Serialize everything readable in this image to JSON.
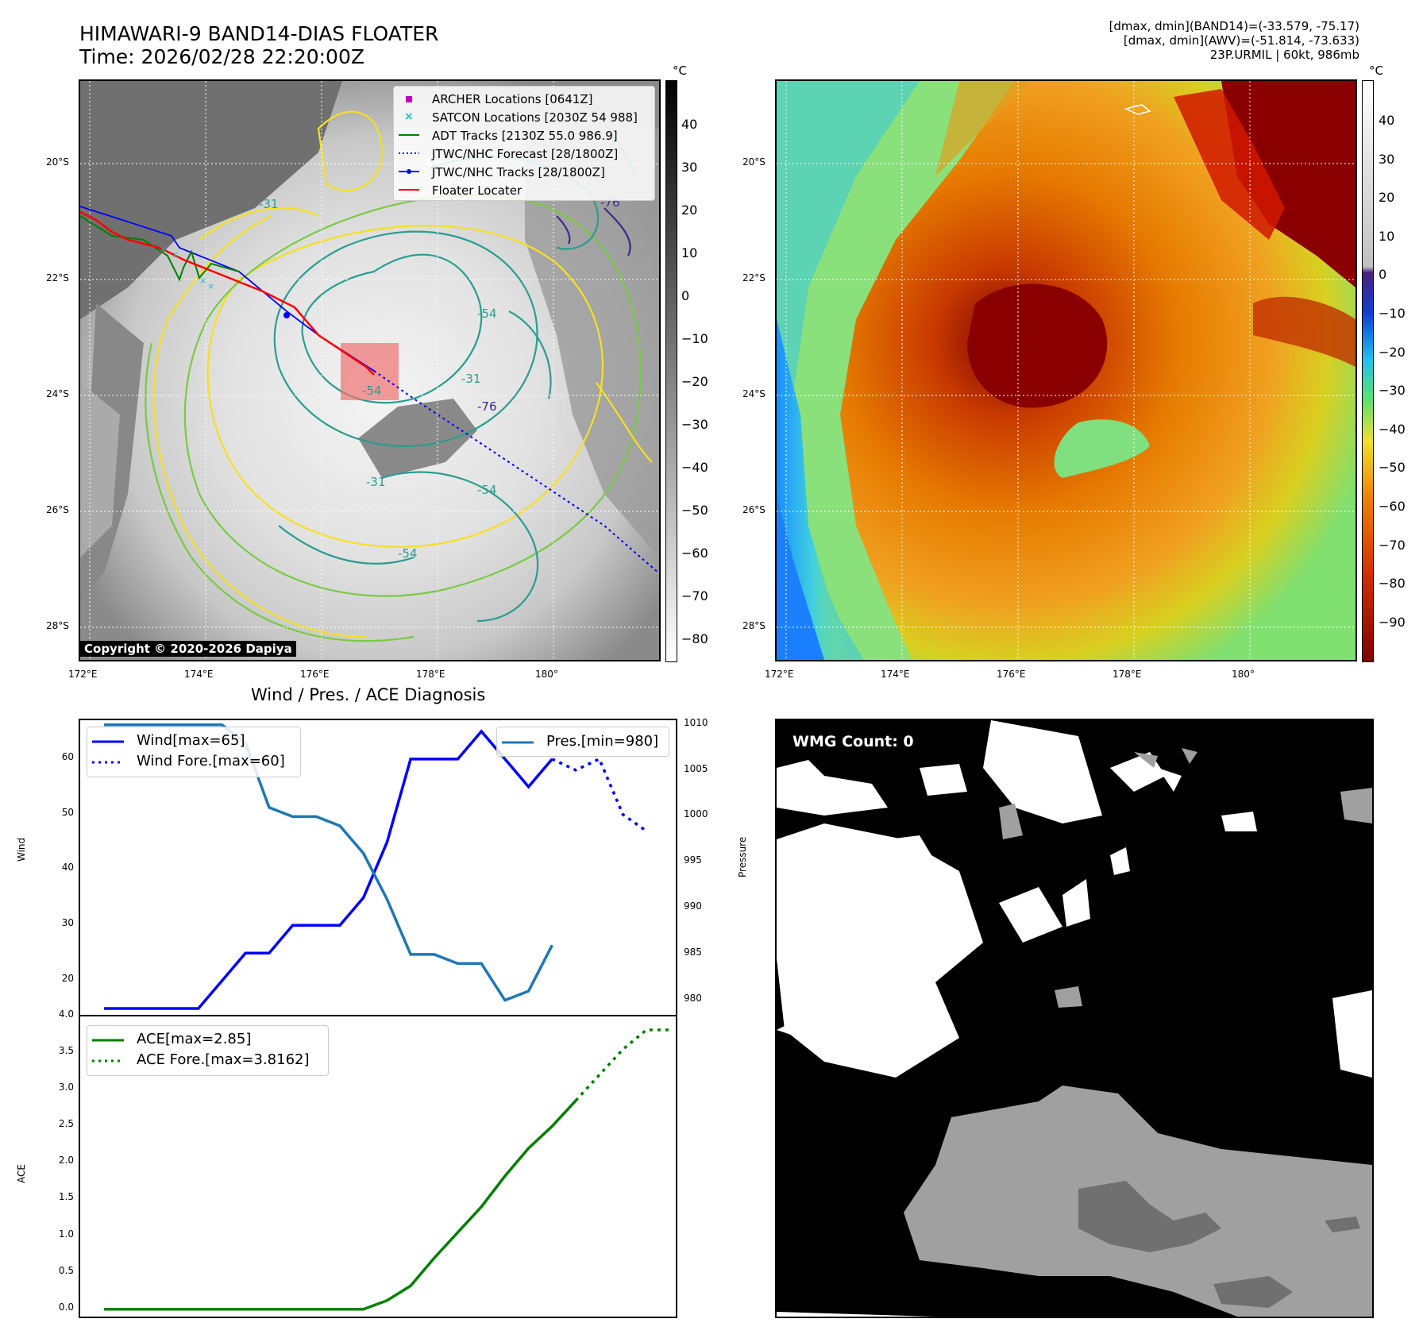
{
  "header": {
    "title_line1": "HIMAWARI-9 BAND14-DIAS FLOATER",
    "title_line2": "Time: 2026/02/28 22:20:00Z",
    "info_line1": "[dmax, dmin](BAND14)=(-33.579, -75.17)",
    "info_line2": "[dmax, dmin](AWV)=(-51.814, -73.633)",
    "info_line3": "23P.URMIL | 60kt, 986mb"
  },
  "maps": {
    "lat_labels": [
      "20°S",
      "22°S",
      "24°S",
      "26°S",
      "28°S"
    ],
    "lon_labels": [
      "172°E",
      "174°E",
      "176°E",
      "178°E",
      "180°"
    ],
    "copyright": "Copyright © 2020-2026 Dapiya",
    "contour_labels": [
      "-31",
      "-54",
      "-31",
      "-54",
      "-54",
      "-31",
      "-54",
      "-76",
      "-76"
    ],
    "legend": [
      {
        "label": "ARCHER Locations [0641Z]",
        "color": "#c000c0",
        "marker": "square"
      },
      {
        "label": "SATCON Locations [2030Z 54 988]",
        "color": "#17becf",
        "marker": "x"
      },
      {
        "label": "ADT Tracks [2130Z 55.0 986.9]",
        "color": "#008000",
        "marker": "line"
      },
      {
        "label": "JTWC/NHC Forecast [28/1800Z]",
        "color": "#0000ff",
        "marker": "dotted"
      },
      {
        "label": "JTWC/NHC Tracks [28/1800Z]",
        "color": "#0000ff",
        "marker": "line-dot"
      },
      {
        "label": "Floater Locater",
        "color": "#ff0000",
        "marker": "line"
      }
    ],
    "cb_unit": "°C",
    "cb1_ticks": [
      "40",
      "30",
      "20",
      "10",
      "0",
      "−10",
      "−20",
      "−30",
      "−40",
      "−50",
      "−60",
      "−70",
      "−80"
    ],
    "cb2_ticks": [
      "40",
      "30",
      "20",
      "10",
      "0",
      "−10",
      "−20",
      "−30",
      "−40",
      "−50",
      "−60",
      "−70",
      "−80",
      "−90"
    ]
  },
  "wmg": {
    "label": "WMG Count: 0"
  },
  "chart_data": [
    {
      "type": "line",
      "title": "Wind / Pres. / ACE Diagnosis",
      "ylabel": "Wind",
      "ylabel_right": "Pressure",
      "ylim": [
        14,
        67
      ],
      "ylim_right": [
        978.5,
        1010.5
      ],
      "y_ticks": [
        "20",
        "30",
        "40",
        "50",
        "60"
      ],
      "y_ticks_right": [
        "980",
        "985",
        "990",
        "995",
        "1000",
        "1005",
        "1010"
      ],
      "series": [
        {
          "name": "Wind[max=65]",
          "color": "#0000ff",
          "style": "solid",
          "values": [
            15,
            15,
            15,
            15,
            15,
            20,
            25,
            25,
            30,
            30,
            30,
            35,
            45,
            60,
            60,
            60,
            65,
            60,
            55,
            60
          ]
        },
        {
          "name": "Wind Fore.[max=60]",
          "color": "#0000ff",
          "style": "dotted",
          "x_start": 19,
          "values": [
            60,
            58,
            60,
            50,
            47
          ]
        },
        {
          "name": "Pres.[min=980]",
          "color": "#1f77b4",
          "style": "solid",
          "axis": "right",
          "values": [
            1010,
            1010,
            1010,
            1010,
            1010,
            1010,
            1008,
            1001,
            1000,
            1000,
            999,
            996,
            991,
            985,
            985,
            984,
            984,
            980,
            981,
            986
          ]
        }
      ]
    },
    {
      "type": "line",
      "ylabel": "ACE",
      "ylim": [
        -0.1,
        4.0
      ],
      "y_ticks": [
        "0.0",
        "0.5",
        "1.0",
        "1.5",
        "2.0",
        "2.5",
        "3.0",
        "3.5",
        "4.0"
      ],
      "series": [
        {
          "name": "ACE[max=2.85]",
          "color": "#008000",
          "style": "solid",
          "values": [
            0,
            0,
            0,
            0,
            0,
            0,
            0,
            0,
            0,
            0,
            0,
            0,
            0.12,
            0.32,
            0.7,
            1.05,
            1.4,
            1.82,
            2.2,
            2.5,
            2.85
          ]
        },
        {
          "name": "ACE Fore.[max=3.8162]",
          "color": "#008000",
          "style": "dotted",
          "x_start": 20,
          "values": [
            2.85,
            3.2,
            3.55,
            3.8162,
            3.8162
          ]
        }
      ]
    }
  ]
}
